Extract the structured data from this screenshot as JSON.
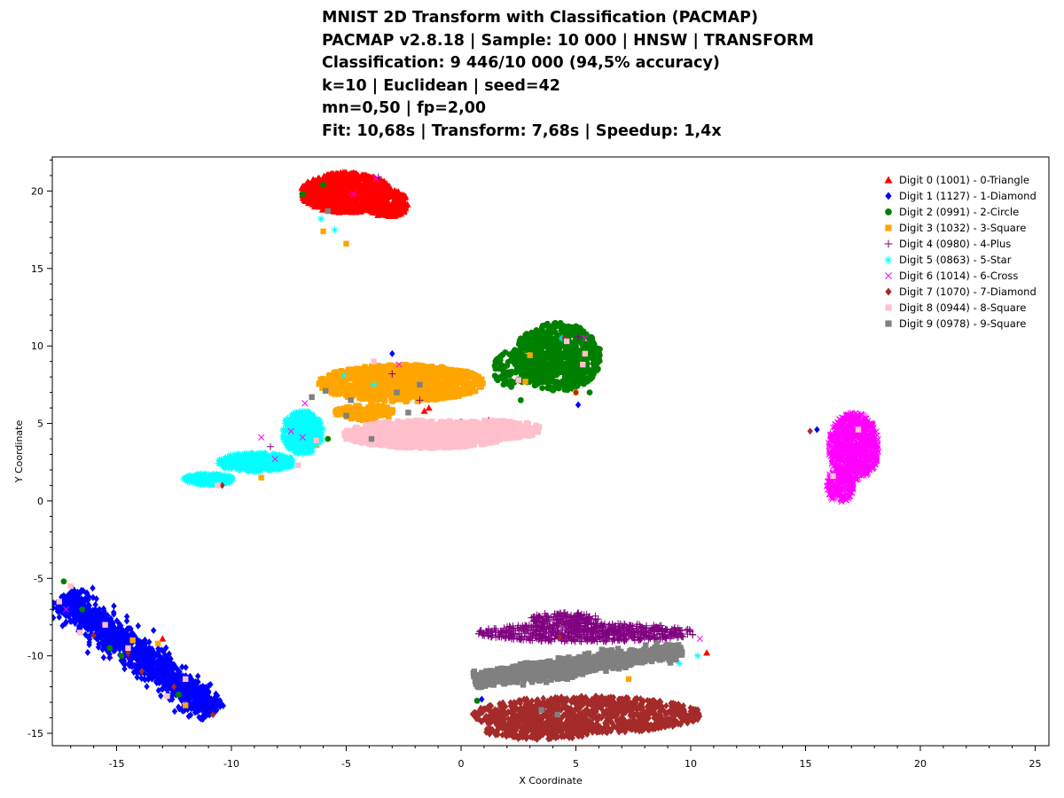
{
  "chart_data": {
    "type": "scatter",
    "title_lines": [
      "MNIST 2D Transform with Classification (PACMAP)",
      "PACMAP v2.8.18 | Sample: 10 000 | HNSW | TRANSFORM",
      "Classification:  9 446/10 000 (94,5% accuracy)",
      "k=10 | Euclidean | seed=42",
      "mn=0,50 | fp=2,00",
      "Fit: 10,68s | Transform: 7,68s | Speedup: 1,4x"
    ],
    "xlabel": "X Coordinate",
    "ylabel": "Y Coordinate",
    "xlim": [
      -17.8,
      25.6
    ],
    "ylim": [
      -15.8,
      22.2
    ],
    "x_ticks": [
      "-15",
      "-10",
      "-5",
      "0",
      "5",
      "10",
      "15",
      "20",
      "25"
    ],
    "y_ticks": [
      "-15",
      "-10",
      "-5",
      "0",
      "5",
      "10",
      "15",
      "20"
    ],
    "legend_position": "top-right",
    "grid": false,
    "series": [
      {
        "name": "Digit 0 (1001) - 0-Triangle",
        "marker": "triangle",
        "color": "#ff0000",
        "clusters": [
          {
            "cx": -5.0,
            "cy": 19.9,
            "rx": 2.0,
            "ry": 1.3,
            "n": 950
          },
          {
            "cx": -3.2,
            "cy": 19.2,
            "rx": 0.9,
            "ry": 0.9,
            "n": 250
          }
        ],
        "points": [
          [
            -1.4,
            6.0
          ],
          [
            -1.6,
            5.8
          ],
          [
            3.5,
            11.1
          ],
          [
            10.7,
            -9.8
          ],
          [
            -13.0,
            -8.9
          ],
          [
            -15.3,
            -10.0
          ]
        ]
      },
      {
        "name": "Digit 1 (1127) - 1-Diamond",
        "marker": "diamond",
        "color": "#0000ff",
        "clusters": [
          {
            "cx": -14.0,
            "cy": -9.9,
            "x0": -17.4,
            "y0": -6.2,
            "x1": -10.7,
            "y1": -13.6,
            "w": 0.9,
            "n": 1400
          }
        ],
        "points": [
          [
            -0.4,
            6.9
          ],
          [
            5.1,
            6.2
          ],
          [
            0.9,
            -12.8
          ],
          [
            -17.5,
            -7.5
          ],
          [
            15.5,
            4.6
          ],
          [
            -3.0,
            9.5
          ]
        ]
      },
      {
        "name": "Digit 2 (0991) - 2-Circle",
        "marker": "circle",
        "color": "#008000",
        "clusters": [
          {
            "cx": 4.2,
            "cy": 9.3,
            "rx": 1.9,
            "ry": 2.2,
            "n": 750
          },
          {
            "cx": 2.3,
            "cy": 8.5,
            "rx": 0.9,
            "ry": 1.2,
            "n": 100
          }
        ],
        "points": [
          [
            0.0,
            5.1
          ],
          [
            0.4,
            5.0
          ],
          [
            -6.9,
            19.8
          ],
          [
            -6.0,
            20.4
          ],
          [
            -17.3,
            -5.2
          ],
          [
            -16.5,
            -7.0
          ],
          [
            -15.3,
            -9.5
          ],
          [
            -14.8,
            -10.0
          ],
          [
            -12.3,
            -12.5
          ],
          [
            -5.8,
            4.0
          ],
          [
            0.7,
            -12.9
          ],
          [
            2.6,
            6.5
          ],
          [
            5.6,
            7.0
          ]
        ]
      },
      {
        "name": "Digit 3 (1032) - 3-Square",
        "marker": "square",
        "color": "#ffa500",
        "clusters": [
          {
            "cx": -2.6,
            "cy": 7.6,
            "rx": 3.6,
            "ry": 1.2,
            "n": 1000
          },
          {
            "cx": -4.2,
            "cy": 5.7,
            "rx": 1.3,
            "ry": 0.5,
            "n": 150
          }
        ],
        "points": [
          [
            -8.7,
            1.5
          ],
          [
            -5.0,
            16.6
          ],
          [
            -6.0,
            17.4
          ],
          [
            2.8,
            7.7
          ],
          [
            3.0,
            9.4
          ],
          [
            -14.3,
            -9.0
          ],
          [
            -13.2,
            -9.2
          ],
          [
            -12.0,
            -13.2
          ],
          [
            5.4,
            -10.3
          ],
          [
            7.3,
            -11.5
          ],
          [
            -6.3,
            3.6
          ],
          [
            5.0,
            7.0
          ]
        ]
      },
      {
        "name": "Digit 4 (0980) - 4-Plus",
        "marker": "plus",
        "color": "#800080",
        "clusters": [
          {
            "cx": 5.5,
            "cy": -8.5,
            "rx": 4.8,
            "ry": 0.6,
            "n": 700
          },
          {
            "cx": 4.5,
            "cy": -7.6,
            "rx": 1.5,
            "ry": 0.4,
            "n": 150
          }
        ],
        "points": [
          [
            -6.8,
            5.0
          ],
          [
            -8.3,
            3.5
          ],
          [
            -3.6,
            20.9
          ],
          [
            1.2,
            5.2
          ],
          [
            -1.8,
            6.5
          ],
          [
            5.1,
            10.6
          ],
          [
            -14.5,
            -10.0
          ],
          [
            -3.0,
            8.2
          ]
        ]
      },
      {
        "name": "Digit 5 (0863) - 5-Star",
        "marker": "star",
        "color": "#00ffff",
        "clusters": [
          {
            "cx": -6.9,
            "cy": 4.4,
            "rx": 0.9,
            "ry": 1.4,
            "n": 350
          },
          {
            "cx": -8.9,
            "cy": 2.5,
            "rx": 1.7,
            "ry": 0.6,
            "n": 350
          },
          {
            "cx": -11.0,
            "cy": 1.4,
            "rx": 1.1,
            "ry": 0.35,
            "n": 200
          }
        ],
        "points": [
          [
            -6.1,
            18.2
          ],
          [
            -5.5,
            17.5
          ],
          [
            4.4,
            10.5
          ],
          [
            10.3,
            -10.0
          ],
          [
            9.5,
            -10.5
          ],
          [
            -5.1,
            8.1
          ],
          [
            -3.8,
            7.5
          ]
        ]
      },
      {
        "name": "Digit 6 (1014) - 6-Cross",
        "marker": "cross",
        "color": "#ff00ff",
        "clusters": [
          {
            "cx": 17.1,
            "cy": 3.5,
            "rx": 1.1,
            "ry": 2.2,
            "n": 900
          },
          {
            "cx": 16.5,
            "cy": 1.0,
            "rx": 0.6,
            "ry": 1.1,
            "n": 200
          }
        ],
        "points": [
          [
            -8.7,
            4.1
          ],
          [
            -8.1,
            2.7
          ],
          [
            -6.8,
            6.3
          ],
          [
            -6.9,
            4.1
          ],
          [
            -2.7,
            8.8
          ],
          [
            -3.7,
            20.8
          ],
          [
            -4.7,
            19.8
          ],
          [
            -17.2,
            -7.0
          ],
          [
            10.4,
            -8.9
          ],
          [
            5.4,
            10.5
          ],
          [
            -7.4,
            4.5
          ]
        ]
      },
      {
        "name": "Digit 7 (1070) - 7-Diamond",
        "marker": "diamond",
        "color": "#a52a2a",
        "clusters": [
          {
            "cx": 5.5,
            "cy": -13.8,
            "rx": 5.0,
            "ry": 1.2,
            "n": 1100
          },
          {
            "cx": 3.5,
            "cy": -14.8,
            "rx": 2.5,
            "ry": 0.6,
            "n": 250
          }
        ],
        "points": [
          [
            15.2,
            4.5
          ],
          [
            -10.4,
            1.0
          ],
          [
            -16.0,
            -8.7
          ],
          [
            -14.5,
            -9.8
          ],
          [
            -13.9,
            -11.0
          ],
          [
            -10.8,
            -13.8
          ],
          [
            2.0,
            4.2
          ],
          [
            4.5,
            10.5
          ],
          [
            4.3,
            -8.8
          ],
          [
            5.0,
            7.0
          ],
          [
            -12.5,
            -12.0
          ]
        ]
      },
      {
        "name": "Digit 8 (0944) - 8-Square",
        "marker": "square",
        "color": "#ffc0cb",
        "clusters": [
          {
            "cx": -1.5,
            "cy": 4.3,
            "rx": 3.6,
            "ry": 0.9,
            "n": 1100
          },
          {
            "cx": 1.5,
            "cy": 4.6,
            "rx": 2.0,
            "ry": 0.6,
            "n": 250
          }
        ],
        "points": [
          [
            -17.5,
            -6.5
          ],
          [
            -17.0,
            -5.5
          ],
          [
            -16.6,
            -8.5
          ],
          [
            -15.5,
            -8.0
          ],
          [
            -14.5,
            -9.5
          ],
          [
            -12.8,
            -12.6
          ],
          [
            -12.0,
            -11.5
          ],
          [
            -10.6,
            1.0
          ],
          [
            -7.1,
            2.3
          ],
          [
            16.2,
            1.6
          ],
          [
            17.3,
            4.6
          ],
          [
            2.5,
            7.8
          ],
          [
            4.6,
            10.3
          ],
          [
            5.3,
            8.8
          ],
          [
            5.4,
            9.5
          ],
          [
            -3.8,
            9.0
          ],
          [
            -5.0,
            4.0
          ],
          [
            -6.3,
            3.9
          ]
        ]
      },
      {
        "name": "Digit 9 (0978) - 9-Square",
        "marker": "square",
        "color": "#808080",
        "clusters": [
          {
            "cx": 5.5,
            "cy": -10.6,
            "x0": 0.6,
            "y0": -11.6,
            "x1": 9.6,
            "y1": -9.6,
            "w": 0.55,
            "n": 1000
          },
          {
            "cx": 3.5,
            "cy": -11.0,
            "rx": 2.0,
            "ry": 0.6,
            "n": 200
          }
        ],
        "points": [
          [
            -5.8,
            18.7
          ],
          [
            -5.0,
            5.5
          ],
          [
            -5.9,
            7.1
          ],
          [
            -4.8,
            6.5
          ],
          [
            -3.9,
            4.0
          ],
          [
            -2.3,
            5.7
          ],
          [
            -1.8,
            7.5
          ],
          [
            -2.8,
            7.0
          ],
          [
            -6.5,
            6.7
          ],
          [
            3.5,
            -13.5
          ],
          [
            4.2,
            -13.8
          ]
        ]
      }
    ]
  }
}
